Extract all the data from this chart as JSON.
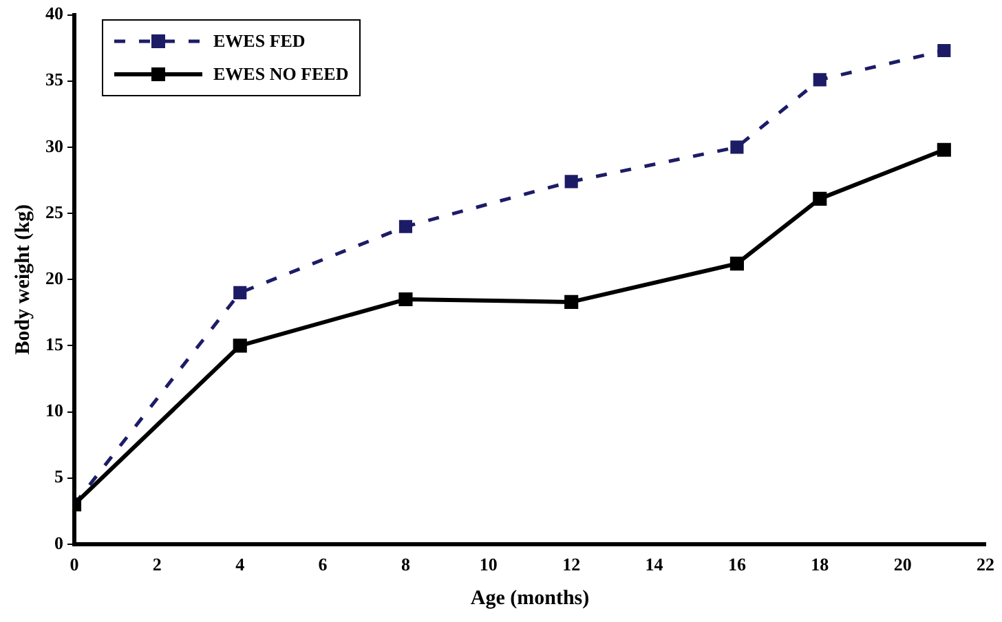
{
  "chart_data": {
    "type": "line",
    "xlabel": "Age (months)",
    "ylabel": "Body weight (kg)",
    "x": [
      0,
      4,
      8,
      12,
      16,
      18,
      21
    ],
    "series": [
      {
        "name": "EWES FED",
        "color": "#1c1c66",
        "line_style": "dashed",
        "values": [
          3,
          19,
          24,
          27.4,
          30,
          35.1,
          37.3
        ]
      },
      {
        "name": "EWES NO FEED",
        "color": "#000000",
        "line_style": "solid",
        "values": [
          3,
          15,
          18.5,
          18.3,
          21.2,
          26.1,
          29.8
        ]
      }
    ],
    "xlim": [
      0,
      22
    ],
    "xticks": [
      0,
      2,
      4,
      6,
      8,
      10,
      12,
      14,
      16,
      18,
      20,
      22
    ],
    "ylim": [
      0,
      40
    ],
    "yticks": [
      0,
      5,
      10,
      15,
      20,
      25,
      30,
      35,
      40
    ],
    "grid": false,
    "legend": "top left",
    "marker": "square"
  }
}
